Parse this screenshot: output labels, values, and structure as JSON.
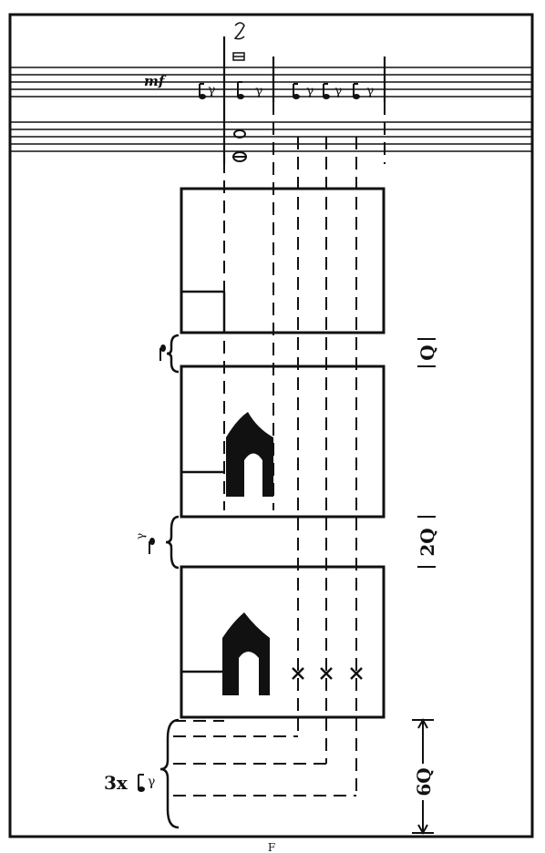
{
  "dynamics": "mf",
  "labels": {
    "gap_one": "Q",
    "gap_two": "2Q",
    "gap_six": "6Q",
    "repeat_prefix": "3x",
    "footer": "F"
  },
  "icons": {
    "frame_shape": "rounded-arch-silhouette",
    "cross_mark": "x-mark",
    "note": "eighth-note",
    "rest": "eighth-rest",
    "brace": "curly-brace"
  },
  "colors": {
    "ink": "#111111",
    "paper": "#ffffff"
  }
}
